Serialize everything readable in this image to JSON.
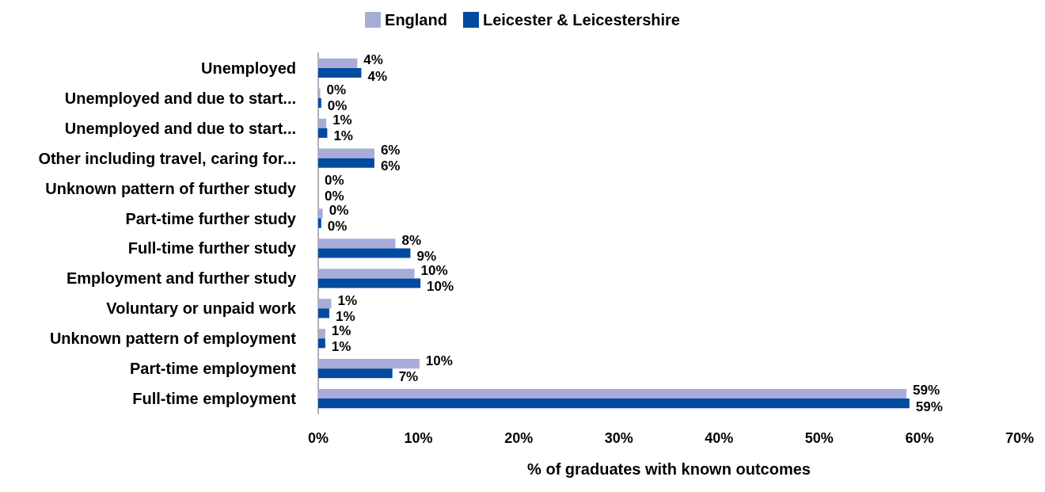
{
  "chart_data": {
    "type": "bar",
    "orientation": "horizontal",
    "legend": "top",
    "grid": false,
    "categories": [
      "Unemployed",
      "Unemployed and due to start...",
      "Unemployed and due to start...",
      "Other including travel, caring for...",
      "Unknown pattern of further study",
      "Part-time further study",
      "Full-time further study",
      "Employment and further study",
      "Voluntary or unpaid work",
      "Unknown pattern of employment",
      "Part-time employment",
      "Full-time employment"
    ],
    "series": [
      {
        "name": "England",
        "color": "#a7acd9",
        "values": [
          3.9,
          0.2,
          0.8,
          5.6,
          0,
          0.45,
          7.7,
          9.6,
          1.3,
          0.7,
          10.1,
          58.7
        ],
        "value_labels": [
          "4%",
          "0%",
          "1%",
          "6%",
          "0%",
          "0%",
          "8%",
          "10%",
          "1%",
          "1%",
          "10%",
          "59%"
        ]
      },
      {
        "name": "Leicester & Leicestershire",
        "color": "#004a9f",
        "values": [
          4.3,
          0.3,
          0.9,
          5.6,
          0,
          0.3,
          9.2,
          10.2,
          1.1,
          0.7,
          7.4,
          59
        ],
        "value_labels": [
          "4%",
          "0%",
          "1%",
          "6%",
          "0%",
          "0%",
          "9%",
          "10%",
          "1%",
          "1%",
          "7%",
          "59%"
        ]
      }
    ],
    "xlim": [
      0,
      70
    ],
    "xticks": [
      {
        "value": 0,
        "label": "0%"
      },
      {
        "value": 10,
        "label": "10%"
      },
      {
        "value": 20,
        "label": "20%"
      },
      {
        "value": 30,
        "label": "30%"
      },
      {
        "value": 40,
        "label": "40%"
      },
      {
        "value": 50,
        "label": "50%"
      },
      {
        "value": 60,
        "label": "60%"
      },
      {
        "value": 70,
        "label": "70%"
      }
    ],
    "xlabel": "% of graduates with known outcomes"
  }
}
